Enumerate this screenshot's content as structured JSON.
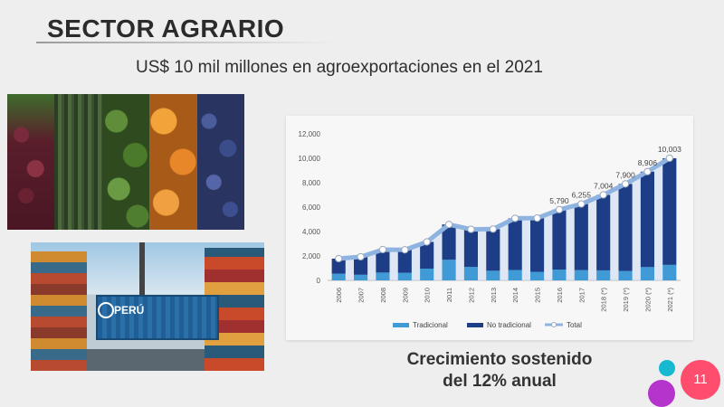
{
  "slide": {
    "title": "SECTOR AGRARIO",
    "subtitle": "US$ 10 mil millones en agroexportaciones en el 2021",
    "port_image_label": "PERÚ",
    "caption_line1": "Crecimiento sostenido",
    "caption_line2": "del 12% anual",
    "page_number": "11"
  },
  "colors": {
    "tradicional": "#3f9ad6",
    "no_tradicional": "#1d3e86",
    "total_line": "#8fb3e0",
    "accent_cyan": "#16b9d0",
    "accent_purple": "#b535cc",
    "badge": "#ff4d6d"
  },
  "icons": [
    "produce-photo",
    "port-photo"
  ],
  "chart_data": {
    "type": "bar",
    "stacked": true,
    "categories": [
      "2006",
      "2007",
      "2008",
      "2009",
      "2010",
      "2011",
      "2012",
      "2013",
      "2014",
      "2015",
      "2016",
      "2017",
      "2018 (*)",
      "2019 (*)",
      "2020 (*)",
      "2021 (*)"
    ],
    "series": [
      {
        "name": "Tradicional",
        "values": [
          550,
          460,
          640,
          630,
          960,
          1690,
          1100,
          790,
          850,
          700,
          880,
          840,
          820,
          770,
          1090,
          1270
        ]
      },
      {
        "name": "No tradicional",
        "values": [
          1230,
          1470,
          1880,
          1870,
          2190,
          2890,
          3080,
          3410,
          4230,
          4400,
          4910,
          5415,
          6184,
          7130,
          7816,
          8733
        ]
      }
    ],
    "total": {
      "name": "Total",
      "values": [
        1780,
        1930,
        2520,
        2500,
        3150,
        4580,
        4180,
        4200,
        5080,
        5100,
        5790,
        6255,
        7004,
        7900,
        8906,
        10003
      ],
      "labeled_values": {
        "2016": "5,790",
        "2017": "6,255",
        "2018 (*)": "7,004",
        "2019 (*)": "7,900",
        "2020 (*)": "8,906",
        "2021 (*)": "10,003"
      }
    },
    "y_ticks": [
      "0",
      "2,000",
      "4,000",
      "6,000",
      "8,000",
      "10,000",
      "12,000"
    ],
    "ylim": [
      0,
      12000
    ],
    "legend_position": "bottom",
    "grid": false
  }
}
